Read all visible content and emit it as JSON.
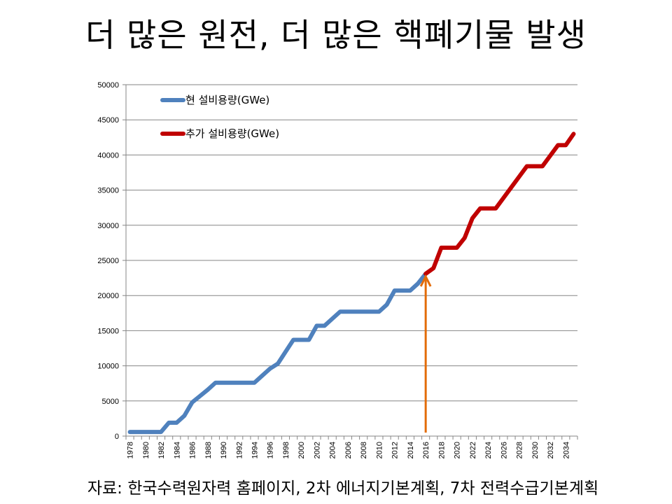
{
  "title": "더 많은 원전, 더 많은 핵폐기물 발생",
  "source": "자료: 한국수력원자력 홈페이지, 2차 에너지기본계획, 7차 전력수급기본계획",
  "chart_data": {
    "type": "line",
    "title": "",
    "xlabel": "",
    "ylabel": "",
    "ylim": [
      0,
      50000
    ],
    "yticks": [
      0,
      5000,
      10000,
      15000,
      20000,
      25000,
      30000,
      35000,
      40000,
      45000,
      50000
    ],
    "xrange": [
      1978,
      2035
    ],
    "xtick_labels": [
      "1978",
      "1980",
      "1982",
      "1984",
      "1986",
      "1988",
      "1990",
      "1992",
      "1994",
      "1996",
      "1998",
      "2000",
      "2002",
      "2004",
      "2006",
      "2008",
      "2010",
      "2012",
      "2014",
      "2016",
      "2018",
      "2020",
      "2022",
      "2024",
      "2026",
      "2028",
      "2030",
      "2032",
      "2034"
    ],
    "grid": true,
    "legend_position": "top-left",
    "series": [
      {
        "name": "현 설비용량(GWe)",
        "color": "#4F81BD",
        "x": [
          1978,
          1979,
          1980,
          1981,
          1982,
          1983,
          1984,
          1985,
          1986,
          1987,
          1988,
          1989,
          1990,
          1991,
          1992,
          1993,
          1994,
          1995,
          1996,
          1997,
          1998,
          1999,
          2000,
          2001,
          2002,
          2003,
          2004,
          2005,
          2006,
          2007,
          2008,
          2009,
          2010,
          2011,
          2012,
          2013,
          2014,
          2015,
          2016
        ],
        "values": [
          587,
          587,
          587,
          587,
          587,
          1900,
          1900,
          2900,
          4800,
          5700,
          6600,
          7600,
          7600,
          7600,
          7600,
          7600,
          7600,
          8600,
          9600,
          10300,
          12000,
          13700,
          13700,
          13700,
          15700,
          15700,
          16700,
          17700,
          17700,
          17700,
          17700,
          17700,
          17700,
          18700,
          20700,
          20700,
          20700,
          21700,
          23100
        ]
      },
      {
        "name": "추가 설비용량(GWe)",
        "color": "#C00000",
        "x": [
          2016,
          2017,
          2018,
          2019,
          2020,
          2021,
          2022,
          2023,
          2024,
          2025,
          2026,
          2027,
          2028,
          2029,
          2030,
          2031,
          2032,
          2033,
          2034,
          2035
        ],
        "values": [
          23100,
          23900,
          26800,
          26800,
          26800,
          28200,
          31000,
          32400,
          32400,
          32400,
          33900,
          35400,
          36900,
          38400,
          38400,
          38400,
          39900,
          41400,
          41400,
          43000
        ]
      }
    ],
    "annotations": [
      {
        "type": "arrow",
        "x": 2016,
        "color": "#E36C09",
        "from_value": 0,
        "to_value": 23100
      }
    ]
  }
}
